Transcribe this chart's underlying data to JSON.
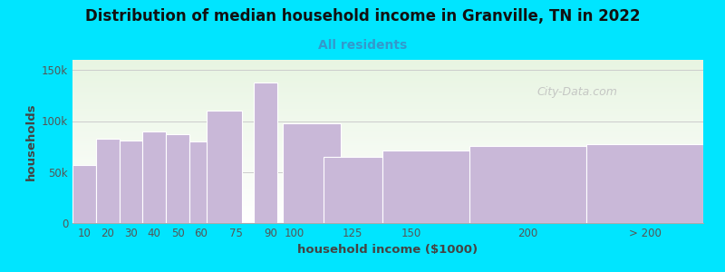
{
  "title": "Distribution of median household income in Granville, TN in 2022",
  "subtitle": "All residents",
  "xlabel": "household income ($1000)",
  "ylabel": "households",
  "bar_color": "#c9b8d8",
  "bar_edge_color": "#ffffff",
  "background_color": "#00e5ff",
  "watermark_text": "City-Data.com",
  "categories": [
    "10",
    "20",
    "30",
    "40",
    "50",
    "60",
    "75",
    "90",
    "100",
    "125",
    "150",
    "200",
    "> 200"
  ],
  "left_edges": [
    5,
    15,
    25,
    35,
    45,
    55,
    62.5,
    82.5,
    95,
    112.5,
    137.5,
    175,
    225
  ],
  "widths": [
    10,
    10,
    10,
    10,
    10,
    10,
    15,
    10,
    25,
    25,
    50,
    50,
    50
  ],
  "tick_positions": [
    10,
    20,
    30,
    40,
    50,
    60,
    75,
    90,
    100,
    125,
    150,
    200,
    250
  ],
  "values": [
    57000,
    83000,
    81000,
    90000,
    87000,
    80000,
    110000,
    138000,
    98000,
    65000,
    71000,
    76000,
    77000
  ],
  "ylim": [
    0,
    160000
  ],
  "yticks": [
    0,
    50000,
    100000,
    150000
  ],
  "ytick_labels": [
    "0",
    "50k",
    "100k",
    "150k"
  ],
  "title_fontsize": 12,
  "subtitle_fontsize": 10,
  "axis_label_fontsize": 9.5,
  "tick_fontsize": 8.5,
  "watermark_fontsize": 9
}
